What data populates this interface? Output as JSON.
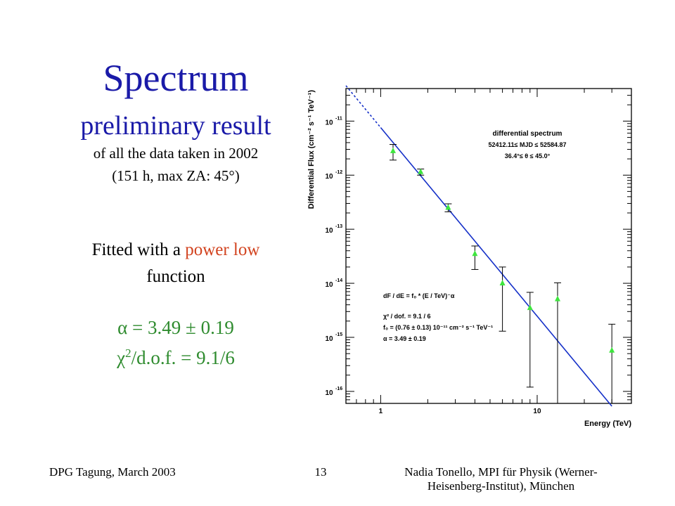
{
  "slide": {
    "title": "Spectrum",
    "subtitle": "preliminary result",
    "line1": "of all the data taken in 2002",
    "line2": "(151 h, max ZA: 45°)",
    "fit_pre": "Fitted with a ",
    "fit_accent": "power low",
    "fit_post": "function",
    "alpha_line": "α = 3.49 ± 0.19",
    "chi_symbol": "χ",
    "chi_sup": "2",
    "chi_rest": "/d.o.f. = 9.1/6",
    "colors": {
      "title": "#1a1aa8",
      "accent": "#d2431f",
      "result": "#2e8b2e"
    }
  },
  "footer": {
    "left": "DPG Tagung, March 2003",
    "page": "13",
    "right_line1": "Nadia Tonello, MPI für Physik (Werner-",
    "right_line2": "Heisenberg-Institut), München"
  },
  "chart_data": {
    "type": "scatter",
    "xlabel": "Energy (TeV)",
    "ylabel": "Differential Flux (cm⁻² s⁻¹ TeV⁻¹)",
    "x_scale": "log",
    "y_scale": "log",
    "xlim": [
      0.6,
      40
    ],
    "ylim": [
      6e-17,
      4e-11
    ],
    "x_tick_labels": [
      {
        "value": 1,
        "label": "1"
      },
      {
        "value": 10,
        "label": "10"
      }
    ],
    "y_tick_labels": [
      {
        "value": 1e-11,
        "mant": "10",
        "exp": "-11"
      },
      {
        "value": 1e-12,
        "mant": "10",
        "exp": "-12"
      },
      {
        "value": 1e-13,
        "mant": "10",
        "exp": "-13"
      },
      {
        "value": 1e-14,
        "mant": "10",
        "exp": "-14"
      },
      {
        "value": 1e-15,
        "mant": "10",
        "exp": "-15"
      },
      {
        "value": 1e-16,
        "mant": "10",
        "exp": "-16"
      }
    ],
    "legend_top": [
      "differential spectrum",
      "52412.11≤ MJD ≤ 52584.87",
      "36.4°≤ θ ≤ 45.0°"
    ],
    "fit_legend": [
      "dF / dE = f₀ * (E / TeV)⁻α",
      "χ² / dof. = 9.1 / 6",
      "f₀ = (0.76 ± 0.13) 10⁻¹¹ cm⁻² s⁻¹ TeV⁻¹",
      "α = 3.49 ± 0.19"
    ],
    "series": [
      {
        "points": [
          {
            "x": 1.2,
            "y": 2.8e-12,
            "ylo": 1.9e-12,
            "yhi": 3.7e-12
          },
          {
            "x": 1.8,
            "y": 1.15e-12,
            "ylo": 1e-12,
            "yhi": 1.3e-12
          },
          {
            "x": 2.7,
            "y": 2.5e-13,
            "ylo": 2.1e-13,
            "yhi": 2.95e-13
          },
          {
            "x": 4.0,
            "y": 3.5e-14,
            "ylo": 1.8e-14,
            "yhi": 4.9e-14
          },
          {
            "x": 6.0,
            "y": 1e-14,
            "ylo": 1.3e-15,
            "yhi": 2e-14
          },
          {
            "x": 9.0,
            "y": 3.5e-15,
            "ylo": 1.2e-16,
            "yhi": 6.8e-15
          },
          {
            "x": 13.5,
            "y": 5.1e-15,
            "ylo": 6e-17,
            "yhi": 1.02e-14
          },
          {
            "x": 30.0,
            "y": 5.7e-16,
            "ylo": 6e-17,
            "yhi": 1.75e-15
          }
        ]
      }
    ],
    "fit": {
      "f0": 7.6e-12,
      "alpha": 3.49,
      "dashed_range": [
        0.6,
        1.0
      ],
      "solid_range": [
        1.0,
        30.0
      ]
    },
    "colors": {
      "points": "#3ee63e",
      "fit": "#1530c8",
      "axes": "#000000"
    }
  }
}
